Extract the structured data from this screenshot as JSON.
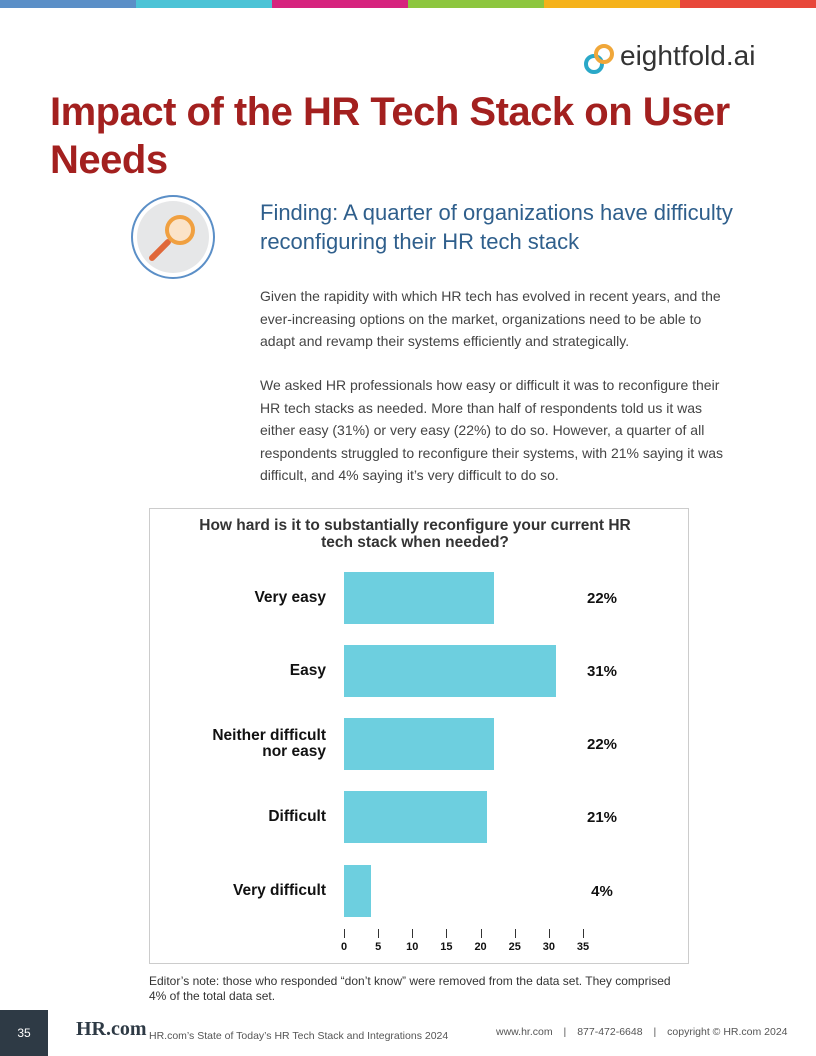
{
  "header": {
    "logo": "eightfold.ai",
    "title": "Impact of the HR Tech Stack on User Needs"
  },
  "finding": {
    "heading": "Finding: A quarter of organizations have difficulty reconfiguring their HR tech stack",
    "paragraphs": [
      "Given the rapidity with which HR tech has evolved in recent years, and the ever-increasing options on the market, organizations need to be able to adapt and revamp their systems efficiently and strategically.",
      "We asked HR professionals how easy or difficult it was to reconfigure their HR tech stacks as needed. More than half of respondents told us it was either easy (31%) or very easy (22%) to do so. However, a quarter of all respondents struggled to reconfigure their systems, with 21% saying it was difficult, and 4% saying it’s very difficult to do so."
    ]
  },
  "chart_data": {
    "type": "bar",
    "orientation": "horizontal",
    "title": "How hard is it to substantially reconfigure your current HR tech stack when needed?",
    "categories": [
      "Very easy",
      "Easy",
      "Neither difficult nor easy",
      "Difficult",
      "Very difficult"
    ],
    "values": [
      22,
      31,
      22,
      21,
      4
    ],
    "value_labels": [
      "22%",
      "31%",
      "22%",
      "21%",
      "4%"
    ],
    "color": "#6dcfdf",
    "xlim": [
      0,
      35
    ],
    "xticks": [
      0,
      5,
      10,
      15,
      20,
      25,
      30,
      35
    ]
  },
  "note": "Editor’s note: those who responded “don’t know” were removed from the data set. They comprised 4% of the total data set.",
  "footer": {
    "page": "35",
    "logo": "HR.com",
    "report": "HR.com’s State of Today’s HR Tech Stack and Integrations 2024",
    "contact": [
      "www.hr.com",
      "877-472-6648",
      "copyright © HR.com 2024"
    ]
  }
}
